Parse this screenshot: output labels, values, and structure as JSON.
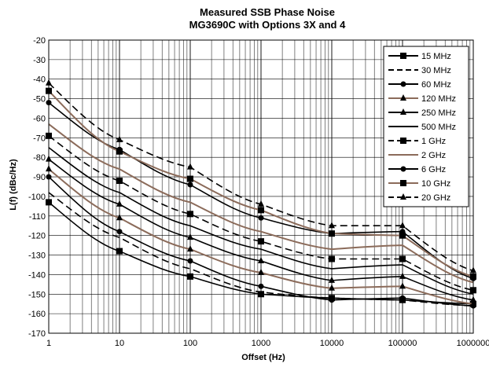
{
  "chart_data": {
    "type": "line",
    "title": "Measured SSB Phase Noise",
    "subtitle": "MG3690C with Options 3X and 4",
    "xlabel": "Offset (Hz)",
    "ylabel": "L(f) (dBc/Hz)",
    "x_scale": "log",
    "xlim": [
      1,
      1000000
    ],
    "ylim": [
      -170,
      -20
    ],
    "x_ticks": [
      "1",
      "10",
      "100",
      "1000",
      "10000",
      "100000",
      "1000000"
    ],
    "y_ticks": [
      "-20",
      "-30",
      "-40",
      "-50",
      "-60",
      "-70",
      "-80",
      "-90",
      "-100",
      "-110",
      "-120",
      "-130",
      "-140",
      "-150",
      "-160",
      "-170"
    ],
    "grid": true,
    "legend_position": "top-right",
    "x": [
      1,
      10,
      100,
      1000,
      10000,
      100000,
      1000000
    ],
    "series": [
      {
        "name": "15 MHz",
        "color": "#000000",
        "style": "solid",
        "marker": "square",
        "values": [
          -103,
          -128,
          -141,
          -150,
          -152,
          -153,
          -155
        ]
      },
      {
        "name": "30 MHz",
        "color": "#000000",
        "style": "dashed",
        "marker": "none",
        "values": [
          -98,
          -121,
          -137,
          -149,
          -152,
          -153,
          -156
        ]
      },
      {
        "name": "60 MHz",
        "color": "#000000",
        "style": "solid",
        "marker": "circle",
        "values": [
          -90,
          -118,
          -133,
          -146,
          -153,
          -152,
          -156
        ]
      },
      {
        "name": "120 MHz",
        "color": "#8b6b5a",
        "style": "solid",
        "marker": "triangle",
        "values": [
          -86,
          -111,
          -127,
          -139,
          -147,
          -146,
          -155
        ]
      },
      {
        "name": "250 MHz",
        "color": "#000000",
        "style": "solid",
        "marker": "triangle",
        "values": [
          -81,
          -104,
          -121,
          -133,
          -143,
          -141,
          -153
        ]
      },
      {
        "name": "500 MHz",
        "color": "#000000",
        "style": "solid",
        "marker": "none",
        "values": [
          -75,
          -98,
          -115,
          -127,
          -137,
          -135,
          -150
        ]
      },
      {
        "name": "1 GHz",
        "color": "#000000",
        "style": "dashed",
        "marker": "square",
        "values": [
          -69,
          -92,
          -109,
          -123,
          -132,
          -132,
          -148
        ]
      },
      {
        "name": "2 GHz",
        "color": "#8b6b5a",
        "style": "solid",
        "marker": "none",
        "values": [
          -63,
          -86,
          -103,
          -118,
          -127,
          -125,
          -144
        ]
      },
      {
        "name": "6 GHz",
        "color": "#000000",
        "style": "solid",
        "marker": "circle",
        "values": [
          -52,
          -76,
          -94,
          -111,
          -119,
          -118,
          -142
        ]
      },
      {
        "name": "10 GHz",
        "color": "#8b6b5a",
        "style": "solid",
        "marker": "square",
        "values": [
          -46,
          -77,
          -91,
          -107,
          -119,
          -120,
          -141
        ]
      },
      {
        "name": "20 GHz",
        "color": "#000000",
        "style": "dashed",
        "marker": "triangle",
        "values": [
          -42,
          -71,
          -85,
          -104,
          -115,
          -115,
          -138
        ]
      }
    ]
  }
}
